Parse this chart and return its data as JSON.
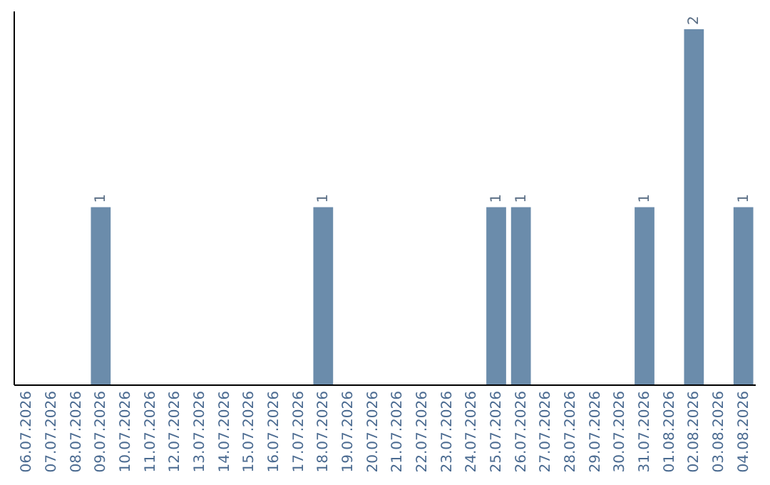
{
  "chart_data": {
    "type": "bar",
    "categories": [
      "06.07.2026",
      "07.07.2026",
      "08.07.2026",
      "09.07.2026",
      "10.07.2026",
      "11.07.2026",
      "12.07.2026",
      "13.07.2026",
      "14.07.2026",
      "15.07.2026",
      "16.07.2026",
      "17.07.2026",
      "18.07.2026",
      "19.07.2026",
      "20.07.2026",
      "21.07.2026",
      "22.07.2026",
      "23.07.2026",
      "24.07.2026",
      "25.07.2026",
      "26.07.2026",
      "27.07.2026",
      "28.07.2026",
      "29.07.2026",
      "30.07.2026",
      "31.07.2026",
      "01.08.2026",
      "02.08.2026",
      "03.08.2026",
      "04.08.2026"
    ],
    "values": [
      0,
      0,
      0,
      1,
      0,
      0,
      0,
      0,
      0,
      0,
      0,
      0,
      1,
      0,
      0,
      0,
      0,
      0,
      0,
      1,
      1,
      0,
      0,
      0,
      0,
      1,
      0,
      2,
      0,
      1
    ],
    "value_labels": [
      null,
      null,
      null,
      "1",
      null,
      null,
      null,
      null,
      null,
      null,
      null,
      null,
      "1",
      null,
      null,
      null,
      null,
      null,
      null,
      "1",
      "1",
      null,
      null,
      null,
      null,
      "1",
      null,
      "2",
      null,
      "1"
    ],
    "color": "#6b8cab",
    "tick_labels": "x"
  }
}
